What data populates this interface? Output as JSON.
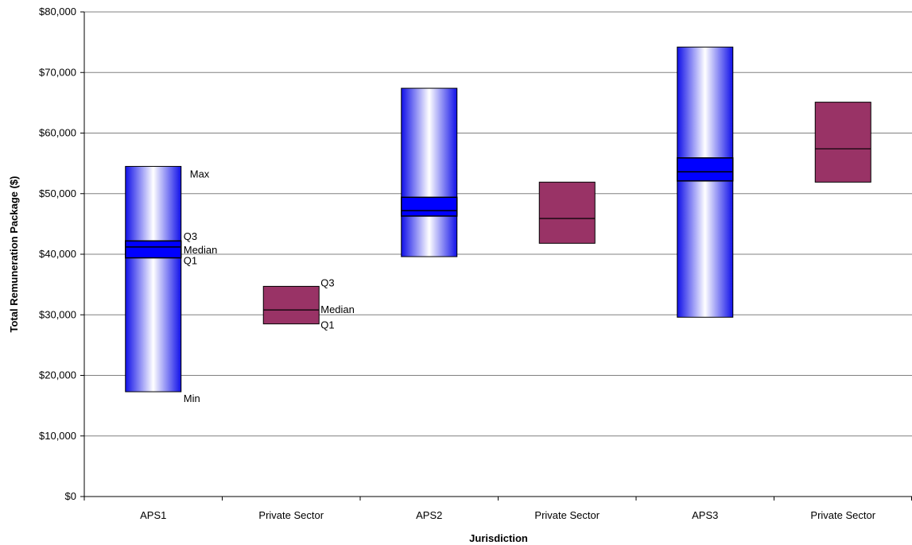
{
  "chart_data": {
    "type": "box",
    "xlabel": "Jurisdiction",
    "ylabel": "Total Remuneration Package ($)",
    "ylim": [
      0,
      80000
    ],
    "ytick_step": 10000,
    "yticks": [
      "$0",
      "$10,000",
      "$20,000",
      "$30,000",
      "$40,000",
      "$50,000",
      "$60,000",
      "$70,000",
      "$80,000"
    ],
    "grid": true,
    "categories": [
      "APS1",
      "Private Sector",
      "APS2",
      "Private Sector",
      "APS3",
      "Private Sector"
    ],
    "boxes": [
      {
        "category": "APS1",
        "kind": "range",
        "min": 17300,
        "q1": 39400,
        "median": 41200,
        "q3": 42200,
        "max": 54500
      },
      {
        "category": "Private Sector",
        "kind": "iqr",
        "q1": 28500,
        "median": 30800,
        "q3": 34700
      },
      {
        "category": "APS2",
        "kind": "range",
        "min": 39600,
        "q1": 46300,
        "median": 47200,
        "q3": 49400,
        "max": 67400
      },
      {
        "category": "Private Sector",
        "kind": "iqr",
        "q1": 41800,
        "median": 45900,
        "q3": 51900
      },
      {
        "category": "APS3",
        "kind": "range",
        "min": 29600,
        "q1": 52100,
        "median": 53600,
        "q3": 55900,
        "max": 74200
      },
      {
        "category": "Private Sector",
        "kind": "iqr",
        "q1": 51900,
        "median": 57400,
        "q3": 65100
      }
    ],
    "annotations": {
      "range_labels": {
        "max": "Max",
        "q3": "Q3",
        "median": "Median",
        "q1": "Q1",
        "min": "Min"
      },
      "iqr_labels": {
        "q3": "Q3",
        "median": "Median",
        "q1": "Q1"
      }
    },
    "colors": {
      "range_edge": "#1010e8",
      "range_center": "#ffffff",
      "iqr_band": "#0000ff",
      "private_fill": "#993366",
      "grid": "#808080",
      "outline": "#000000"
    }
  }
}
